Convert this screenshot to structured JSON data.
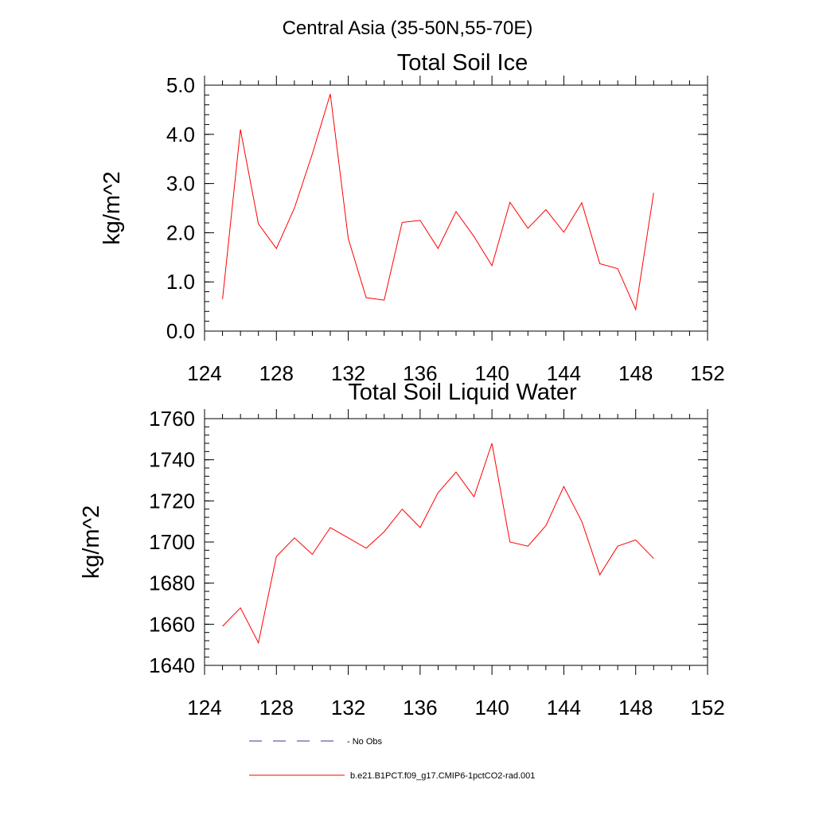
{
  "suptitle": "Central Asia (35-50N,55-70E)",
  "colors": {
    "model": "#ff0000",
    "obs": "#3a3a8c",
    "axis": "#000000"
  },
  "legend": {
    "obs_label": "No Obs",
    "model_label": "b.e21.B1PCT.f09_g17.CMIP6-1pctCO2-rad.001"
  },
  "chart_data": [
    {
      "type": "line",
      "title": "Total Soil Ice",
      "ylabel": "kg/m^2",
      "xlabel": "",
      "xlim": [
        124,
        152
      ],
      "ylim": [
        0,
        5
      ],
      "xticks": [
        124,
        128,
        132,
        136,
        140,
        144,
        148,
        152
      ],
      "xtick_labels": [
        "124",
        "128",
        "132",
        "136",
        "140",
        "144",
        "148",
        "152"
      ],
      "yticks": [
        0,
        1,
        2,
        3,
        4,
        5
      ],
      "ytick_labels": [
        "0.0",
        "1.0",
        "2.0",
        "3.0",
        "4.0",
        "5.0"
      ],
      "grid": false,
      "series": [
        {
          "name": "b.e21.B1PCT.f09_g17.CMIP6-1pctCO2-rad.001",
          "x": [
            125,
            126,
            127,
            128,
            129,
            130,
            131,
            132,
            133,
            134,
            135,
            136,
            137,
            138,
            139,
            140,
            141,
            142,
            143,
            144,
            145,
            146,
            147,
            148,
            149
          ],
          "values": [
            0.65,
            4.1,
            2.18,
            1.68,
            2.5,
            3.6,
            4.82,
            1.88,
            0.68,
            0.63,
            2.21,
            2.25,
            1.68,
            2.43,
            1.92,
            1.33,
            2.62,
            2.09,
            2.47,
            2.01,
            2.61,
            1.37,
            1.27,
            0.44,
            2.81
          ]
        }
      ]
    },
    {
      "type": "line",
      "title": "Total Soil Liquid Water",
      "ylabel": "kg/m^2",
      "xlabel": "",
      "xlim": [
        124,
        152
      ],
      "ylim": [
        1640,
        1760
      ],
      "xticks": [
        124,
        128,
        132,
        136,
        140,
        144,
        148,
        152
      ],
      "xtick_labels": [
        "124",
        "128",
        "132",
        "136",
        "140",
        "144",
        "148",
        "152"
      ],
      "yticks": [
        1640,
        1660,
        1680,
        1700,
        1720,
        1740,
        1760
      ],
      "ytick_labels": [
        "1640",
        "1660",
        "1680",
        "1700",
        "1720",
        "1740",
        "1760"
      ],
      "grid": false,
      "series": [
        {
          "name": "b.e21.B1PCT.f09_g17.CMIP6-1pctCO2-rad.001",
          "x": [
            125,
            126,
            127,
            128,
            129,
            130,
            131,
            132,
            133,
            134,
            135,
            136,
            137,
            138,
            139,
            140,
            141,
            142,
            143,
            144,
            145,
            146,
            147,
            148,
            149
          ],
          "values": [
            1659,
            1668,
            1651,
            1693,
            1702,
            1694,
            1707,
            1702,
            1697,
            1705,
            1716,
            1707,
            1724,
            1734,
            1722,
            1748,
            1700,
            1698,
            1708,
            1727,
            1710,
            1684,
            1698,
            1701,
            1692
          ]
        }
      ]
    }
  ]
}
